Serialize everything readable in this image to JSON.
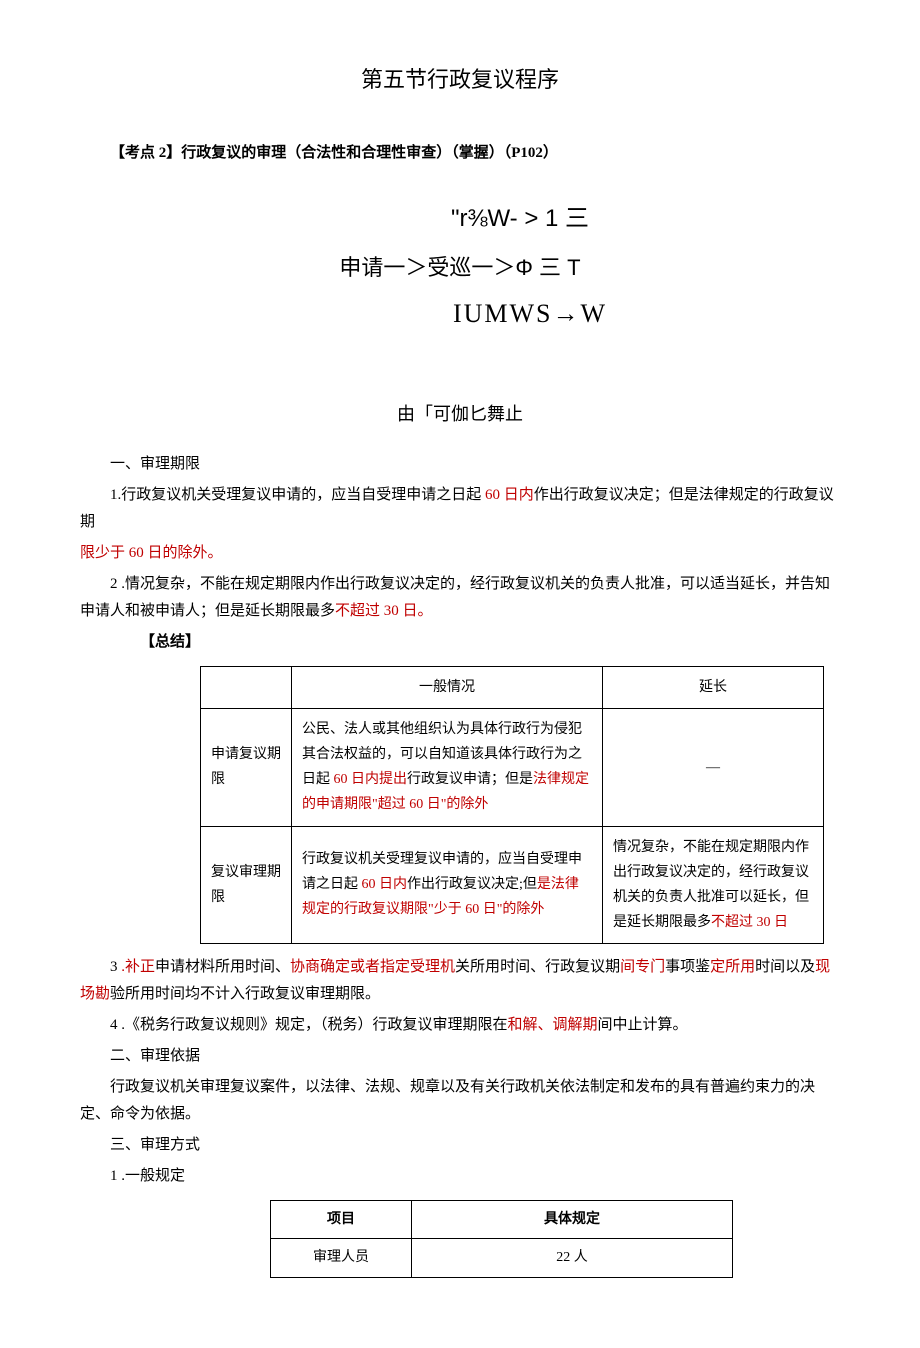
{
  "title": "第五节行政复议程序",
  "kaodian": "【考点 2】行政复议的审理（合法性和合理性审查）（掌握）（P102）",
  "diagram": {
    "line1": "\"r⅜W- > 1 三",
    "line2_a": "申请一＞受巡一＞",
    "line2_b": "Φ 三 T",
    "line3": "IUMWS→W",
    "line4": "由「可伽匕舞止"
  },
  "sec1_title": "一、审理期限",
  "sec1_p1a": "1.行政复议机关受理复议申请的，应当自受理申请之日起 ",
  "sec1_p1b": "60 日内",
  "sec1_p1c": "作出行政复议决定；但是法律规定的行政复议期",
  "sec1_p1d": "限少于 60 日的除外。",
  "sec1_p2a": "2 .情况复杂，不能在规定期限内作出行政复议决定的，经行政复议机关的负责人批准，可以适当延长，并告知申请人和被申请人；但是延长期限最多",
  "sec1_p2b": "不超过 30 日。",
  "zongjie": "【总结】",
  "table1": {
    "header": [
      "",
      "一般情况",
      "延长"
    ],
    "rows": [
      {
        "label": "申请复议期限",
        "col2_parts": [
          {
            "text": "公民、法人或其他组织认为具体行政行为侵犯其合法权益的，可以自知道该具体行政行为之日起 ",
            "red": false
          },
          {
            "text": "60 日内提出",
            "red": true
          },
          {
            "text": "行政复议申请；但是",
            "red": false
          },
          {
            "text": "法律规定的申请期限\"超过 60 日\"的除外",
            "red": true
          }
        ],
        "col3": "—"
      },
      {
        "label": "复议审理期限",
        "col2_parts": [
          {
            "text": "行政复议机关受理复议申请的，应当自受理申请之日起 ",
            "red": false
          },
          {
            "text": "60 日内",
            "red": true
          },
          {
            "text": "作出行政复议决定;但",
            "red": false
          },
          {
            "text": "是法律规定的行政复议期限\"少于 60 日\"的除外",
            "red": true
          }
        ],
        "col3_parts": [
          {
            "text": "情况复杂，不能在规定期限内作出行政复议决定的，经行政复议机关的负责人批准可以延长，但是延长期限最多",
            "red": false
          },
          {
            "text": "不超过 30 日",
            "red": true
          }
        ]
      }
    ]
  },
  "sec1_p3_parts": [
    {
      "text": "3 ",
      "red": false
    },
    {
      "text": ".补正",
      "red": true
    },
    {
      "text": "申请材料所用时间、",
      "red": false
    },
    {
      "text": "协商确定或者指定受理机",
      "red": true
    },
    {
      "text": "关所用",
      "red": false
    },
    {
      "text": "时间、行政复议期",
      "red": false
    },
    {
      "text": "间专门",
      "red": true
    },
    {
      "text": "事项鉴",
      "red": false
    },
    {
      "text": "定所用",
      "red": true
    },
    {
      "text": "时间以及",
      "red": false
    },
    {
      "text": "现场勘",
      "red": true
    },
    {
      "text": "验所用",
      "red": false
    },
    {
      "text": "时间均不计入行政复议审理期限。",
      "red": false
    }
  ],
  "sec1_p4a": "4 .《税务行政复议规则》规定，（税务）行政复议审理期限在",
  "sec1_p4b": "和解、调解期",
  "sec1_p4c": "间中止",
  "sec1_p4d": "计算。",
  "sec2_title": "二、审理依据",
  "sec2_p1": "行政复议机关审理复议案件，以法律、法规、规章以及有关行政机关依法制定和发布的具有普遍约束力的决定、命令为依据。",
  "sec3_title": "三、审理方式",
  "sec3_p1": "1 .一般规定",
  "table2": {
    "header": [
      "项目",
      "具体规定"
    ],
    "rows": [
      [
        "审理人员",
        "22 人"
      ]
    ]
  }
}
